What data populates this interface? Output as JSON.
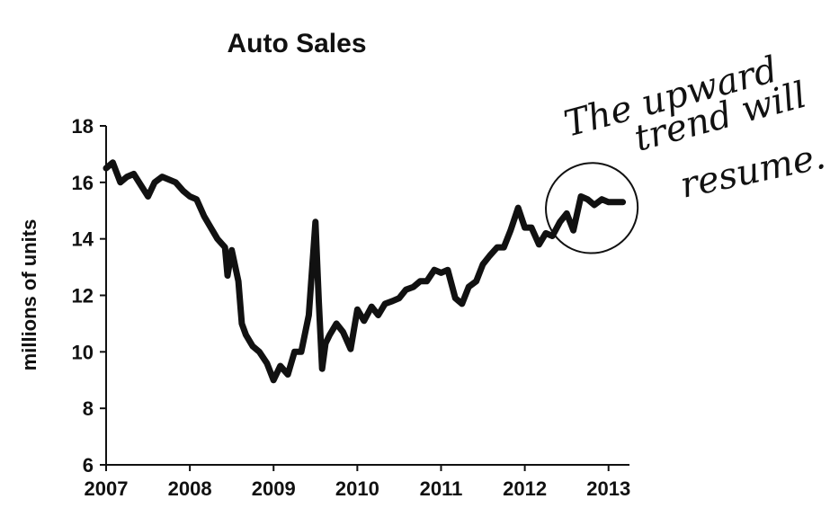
{
  "chart_data": {
    "type": "line",
    "title": "Auto Sales",
    "xlabel": "",
    "ylabel": "millions of units",
    "xlim": [
      2007,
      2013.25
    ],
    "ylim": [
      6,
      18
    ],
    "x_ticks": [
      "2007",
      "2008",
      "2009",
      "2010",
      "2011",
      "2012",
      "2013"
    ],
    "y_ticks": [
      "6",
      "8",
      "10",
      "12",
      "14",
      "16",
      "18"
    ],
    "grid": false,
    "legend": "none",
    "line_color": "#111111",
    "series": [
      {
        "x": [
          2007.0,
          2007.08,
          2007.17,
          2007.25,
          2007.33,
          2007.5,
          2007.58,
          2007.67,
          2007.83,
          2007.92,
          2008.0,
          2008.08,
          2008.17,
          2008.25,
          2008.33,
          2008.42,
          2008.45,
          2008.5,
          2008.58,
          2008.62,
          2008.67,
          2008.75,
          2008.83,
          2008.92,
          2009.0,
          2009.08,
          2009.17,
          2009.25,
          2009.33,
          2009.42,
          2009.5,
          2009.54,
          2009.58,
          2009.62,
          2009.67,
          2009.75,
          2009.83,
          2009.92,
          2010.0,
          2010.08,
          2010.17,
          2010.25,
          2010.33,
          2010.42,
          2010.5,
          2010.58,
          2010.67,
          2010.75,
          2010.83,
          2010.92,
          2011.0,
          2011.08,
          2011.17,
          2011.25,
          2011.33,
          2011.42,
          2011.5,
          2011.58,
          2011.67,
          2011.75,
          2011.83,
          2011.92,
          2012.0,
          2012.08,
          2012.17,
          2012.25,
          2012.33,
          2012.42,
          2012.5,
          2012.58,
          2012.67,
          2012.75,
          2012.83,
          2012.92,
          2013.0,
          2013.08,
          2013.17
        ],
        "values": [
          16.5,
          16.7,
          16.0,
          16.2,
          16.3,
          15.5,
          16.0,
          16.2,
          16.0,
          15.7,
          15.5,
          15.4,
          14.8,
          14.4,
          14.0,
          13.7,
          12.7,
          13.6,
          12.5,
          11.0,
          10.6,
          10.2,
          10.0,
          9.6,
          9.0,
          9.5,
          9.2,
          10.0,
          10.0,
          11.3,
          14.6,
          11.8,
          9.4,
          10.3,
          10.6,
          11.0,
          10.7,
          10.1,
          11.5,
          11.1,
          11.6,
          11.3,
          11.7,
          11.8,
          11.9,
          12.2,
          12.3,
          12.5,
          12.5,
          12.9,
          12.8,
          12.9,
          11.9,
          11.7,
          12.3,
          12.5,
          13.1,
          13.4,
          13.7,
          13.7,
          14.3,
          15.1,
          14.4,
          14.4,
          13.8,
          14.2,
          14.1,
          14.6,
          14.9,
          14.3,
          15.5,
          15.4,
          15.2,
          15.4,
          15.3,
          15.3,
          15.3
        ]
      }
    ],
    "annotation": {
      "text_lines": [
        "The upward",
        "trend will",
        "resume."
      ],
      "circled_range": [
        2012.4,
        2013.2
      ]
    }
  }
}
